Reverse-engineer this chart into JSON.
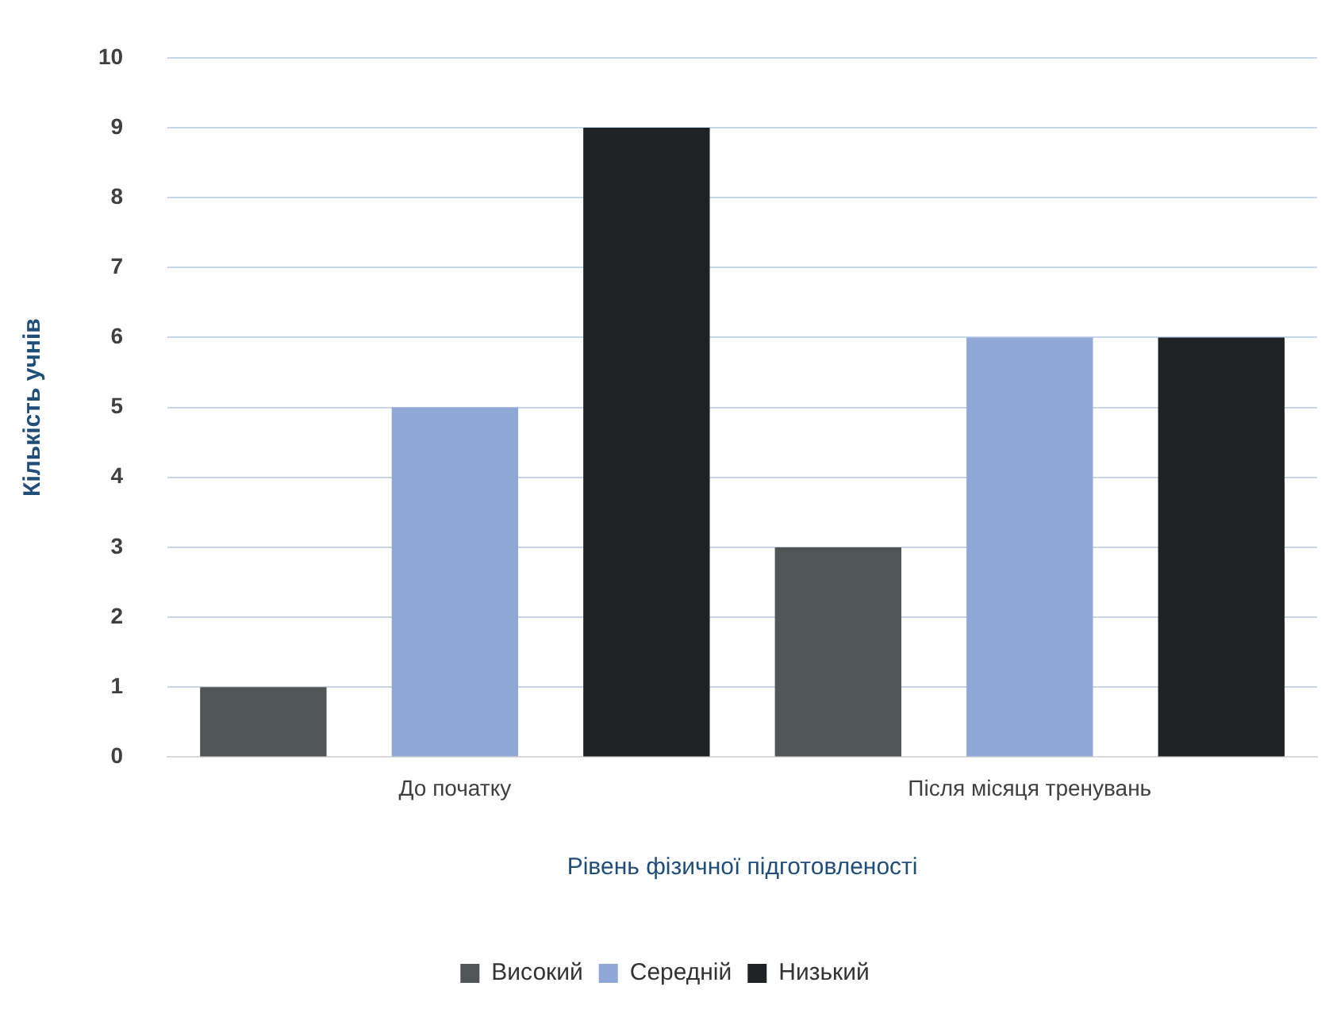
{
  "chart_data": {
    "type": "bar",
    "xlabel": "Рівень фізичної підготовленості",
    "ylabel": "Кількість учнів",
    "categories": [
      "До початку",
      "Після місяця тренувань"
    ],
    "series": [
      {
        "name": "Високий",
        "color": "#505556",
        "values": [
          1,
          3
        ]
      },
      {
        "name": "Середній",
        "color": "#8fa8d6",
        "values": [
          5,
          6
        ]
      },
      {
        "name": "Низький",
        "color": "#1f2326",
        "values": [
          9,
          6
        ]
      }
    ],
    "ylim": [
      0,
      10
    ],
    "yticks": [
      0,
      1,
      2,
      3,
      4,
      5,
      6,
      7,
      8,
      9,
      10
    ],
    "grid": "y",
    "legend": "bottom"
  }
}
